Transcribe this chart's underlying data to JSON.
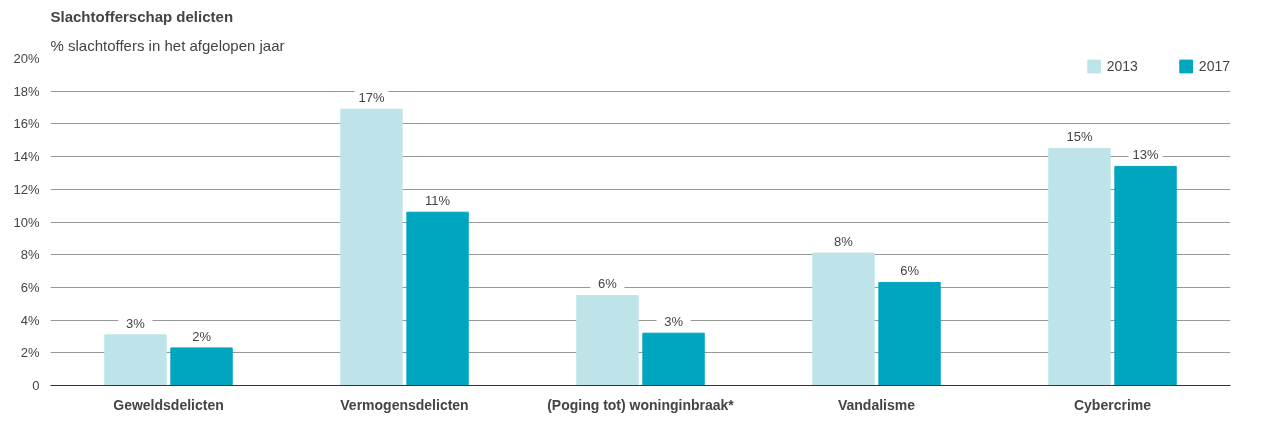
{
  "chart_data": {
    "type": "bar",
    "title": "Slachtofferschap delicten",
    "subtitle": "% slachtoffers in het afgelopen jaar",
    "categories": [
      "Geweldsdelicten",
      "Vermogensdelicten",
      "(Poging tot) woninginbraak*",
      "Vandalisme",
      "Cybercrime"
    ],
    "series": [
      {
        "name": "2013",
        "color": "#bee3e9",
        "values": [
          3.1,
          16.9,
          5.5,
          8.1,
          14.5
        ],
        "value_labels": [
          "3%",
          "17%",
          "6%",
          "8%",
          "15%"
        ]
      },
      {
        "name": "2017",
        "color": "#00a5c0",
        "values": [
          2.3,
          10.6,
          3.2,
          6.3,
          13.4
        ],
        "value_labels": [
          "2%",
          "11%",
          "3%",
          "6%",
          "13%"
        ]
      }
    ],
    "ylim": [
      0,
      20
    ],
    "yticks": [
      {
        "value": 0,
        "label": "0"
      },
      {
        "value": 2,
        "label": "2%"
      },
      {
        "value": 4,
        "label": "4%"
      },
      {
        "value": 6,
        "label": "6%"
      },
      {
        "value": 8,
        "label": "8%"
      },
      {
        "value": 10,
        "label": "10%"
      },
      {
        "value": 12,
        "label": "12%"
      },
      {
        "value": 14,
        "label": "14%"
      },
      {
        "value": 16,
        "label": "16%"
      },
      {
        "value": 18,
        "label": "18%"
      },
      {
        "value": 20,
        "label": "20%"
      }
    ],
    "grid": "y",
    "legend": "top right"
  }
}
